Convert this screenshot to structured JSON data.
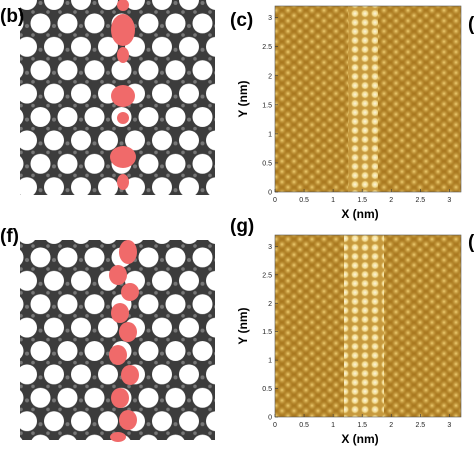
{
  "panels": [
    {
      "label": "(b)"
    },
    {
      "label": "(c)",
      "xlabel": "X (nm)",
      "ylabel": "Y (nm)",
      "xlim": [
        0,
        3.2
      ],
      "ylim": [
        0,
        3.2
      ],
      "xticks": [
        0,
        0.5,
        1,
        1.5,
        2,
        2.5,
        3
      ],
      "yticks": [
        0,
        0.5,
        1,
        1.5,
        2,
        2.5,
        3
      ]
    },
    {
      "label": "(f)"
    },
    {
      "label": "(g)",
      "xlabel": "X (nm)",
      "ylabel": "Y (nm)",
      "xlim": [
        0,
        3.2
      ],
      "ylim": [
        0,
        3.2
      ],
      "xticks": [
        0,
        0.5,
        1,
        1.5,
        2,
        2.5,
        3
      ],
      "yticks": [
        0,
        0.5,
        1,
        1.5,
        2,
        2.5,
        3
      ]
    }
  ],
  "edge_labels": [
    "(",
    "("
  ]
}
